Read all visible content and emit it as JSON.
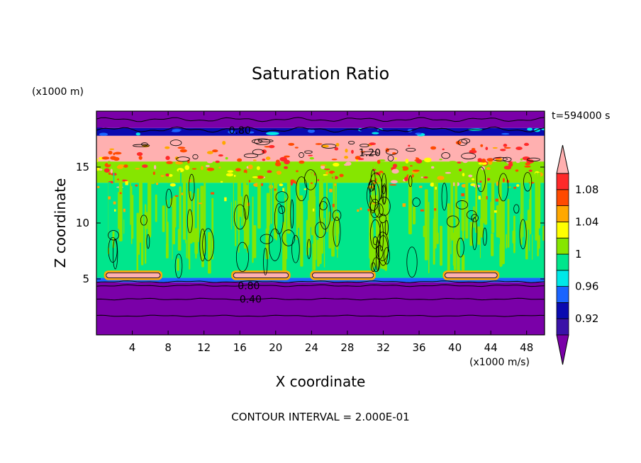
{
  "chart_data": {
    "type": "heatmap",
    "title": "Saturation Ratio",
    "time_label": "t=594000 s",
    "xlabel": "X coordinate",
    "ylabel": "Z coordinate",
    "x_unit": "(x1000 m/s)",
    "y_unit": "(x1000 m)",
    "xlim": [
      0,
      50
    ],
    "ylim": [
      0,
      20
    ],
    "x_ticks": [
      4,
      8,
      12,
      16,
      20,
      24,
      28,
      32,
      36,
      40,
      44,
      48
    ],
    "y_ticks": [
      5,
      10,
      15
    ],
    "footer": "CONTOUR INTERVAL = 2.000E-01",
    "colorbar": {
      "levels": [
        0.92,
        0.94,
        0.96,
        0.98,
        1.0,
        1.02,
        1.04,
        1.06,
        1.08,
        1.1
      ],
      "tick_labels": [
        "0.92",
        "0.96",
        "1",
        "1.04",
        "1.08"
      ],
      "colors": [
        "#7a00a8",
        "#3a12a8",
        "#0a0ab0",
        "#1a64ff",
        "#00e8e8",
        "#00e68c",
        "#86e600",
        "#ffff00",
        "#ffa800",
        "#ff4a00",
        "#ff2a2a",
        "#ffb0b0"
      ]
    },
    "contour_labels": [
      {
        "text": "0.80",
        "x": 16,
        "z": 18.3
      },
      {
        "text": "1.20",
        "x": 30.5,
        "z": 16.3
      },
      {
        "text": "0.80",
        "x": 17,
        "z": 4.4
      },
      {
        "text": "0.40",
        "x": 17.2,
        "z": 3.2
      }
    ],
    "layers": [
      {
        "z_from": 0,
        "z_to": 4.7,
        "band": "0.92 and below"
      },
      {
        "z_from": 4.7,
        "z_to": 5.1,
        "band": "0.96-0.98"
      },
      {
        "z_from": 5.1,
        "z_to": 13.6,
        "band": "0.98-1.02"
      },
      {
        "z_from": 13.6,
        "z_to": 15.5,
        "band": "1.02-1.10"
      },
      {
        "z_from": 15.5,
        "z_to": 17.8,
        "band": "above 1.10"
      },
      {
        "z_from": 17.8,
        "z_to": 18.5,
        "band": "0.94-0.98"
      },
      {
        "z_from": 18.5,
        "z_to": 20,
        "band": "0.92 and below"
      }
    ],
    "lower_patches": [
      {
        "x_from": 1.0,
        "x_to": 7.2
      },
      {
        "x_from": 15.2,
        "x_to": 21.5
      },
      {
        "x_from": 24.0,
        "x_to": 31.0
      },
      {
        "x_from": 38.8,
        "x_to": 44.8
      }
    ]
  }
}
